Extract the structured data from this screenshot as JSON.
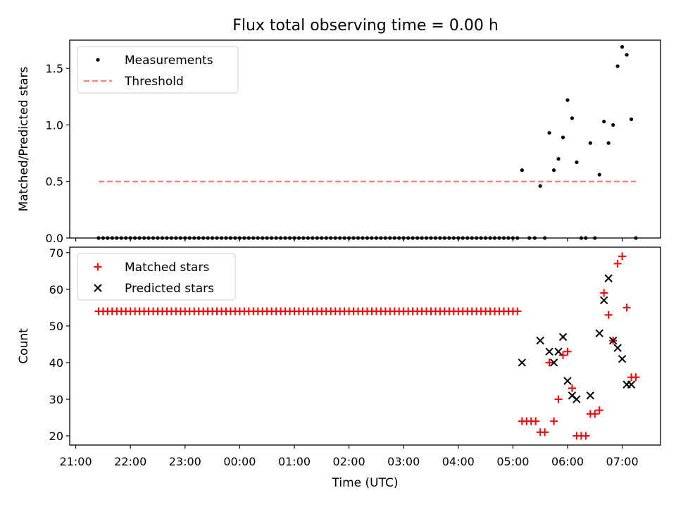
{
  "chart_data": [
    {
      "type": "scatter",
      "title": "Flux total observing time = 0.00 h",
      "xlabel": "",
      "ylabel": "Matched/Predicted stars",
      "ylim": [
        0,
        1.75
      ],
      "y_ticks": [
        "0.0",
        "0.5",
        "1.0",
        "1.5"
      ],
      "legend": {
        "position": "top-left"
      },
      "series": [
        {
          "name": "Measurements",
          "marker": "dot",
          "color": "#000000",
          "points": [
            [
              "21:25",
              0
            ],
            [
              "21:30",
              0
            ],
            [
              "21:35",
              0
            ],
            [
              "21:40",
              0
            ],
            [
              "21:45",
              0
            ],
            [
              "21:50",
              0
            ],
            [
              "21:55",
              0
            ],
            [
              "22:00",
              0
            ],
            [
              "22:05",
              0
            ],
            [
              "22:10",
              0
            ],
            [
              "22:15",
              0
            ],
            [
              "22:20",
              0
            ],
            [
              "22:25",
              0
            ],
            [
              "22:30",
              0
            ],
            [
              "22:35",
              0
            ],
            [
              "22:40",
              0
            ],
            [
              "22:45",
              0
            ],
            [
              "22:50",
              0
            ],
            [
              "22:55",
              0
            ],
            [
              "23:00",
              0
            ],
            [
              "23:05",
              0
            ],
            [
              "23:10",
              0
            ],
            [
              "23:15",
              0
            ],
            [
              "23:20",
              0
            ],
            [
              "23:25",
              0
            ],
            [
              "23:30",
              0
            ],
            [
              "23:35",
              0
            ],
            [
              "23:40",
              0
            ],
            [
              "23:45",
              0
            ],
            [
              "23:50",
              0
            ],
            [
              "23:55",
              0
            ],
            [
              "00:00",
              0
            ],
            [
              "00:05",
              0
            ],
            [
              "00:10",
              0
            ],
            [
              "00:15",
              0
            ],
            [
              "00:20",
              0
            ],
            [
              "00:25",
              0
            ],
            [
              "00:30",
              0
            ],
            [
              "00:35",
              0
            ],
            [
              "00:40",
              0
            ],
            [
              "00:45",
              0
            ],
            [
              "00:50",
              0
            ],
            [
              "00:55",
              0
            ],
            [
              "01:00",
              0
            ],
            [
              "01:05",
              0
            ],
            [
              "01:10",
              0
            ],
            [
              "01:15",
              0
            ],
            [
              "01:20",
              0
            ],
            [
              "01:25",
              0
            ],
            [
              "01:30",
              0
            ],
            [
              "01:35",
              0
            ],
            [
              "01:40",
              0
            ],
            [
              "01:45",
              0
            ],
            [
              "01:50",
              0
            ],
            [
              "01:55",
              0
            ],
            [
              "02:00",
              0
            ],
            [
              "02:05",
              0
            ],
            [
              "02:10",
              0
            ],
            [
              "02:15",
              0
            ],
            [
              "02:20",
              0
            ],
            [
              "02:25",
              0
            ],
            [
              "02:30",
              0
            ],
            [
              "02:35",
              0
            ],
            [
              "02:40",
              0
            ],
            [
              "02:45",
              0
            ],
            [
              "02:50",
              0
            ],
            [
              "02:55",
              0
            ],
            [
              "03:00",
              0
            ],
            [
              "03:05",
              0
            ],
            [
              "03:10",
              0
            ],
            [
              "03:15",
              0
            ],
            [
              "03:20",
              0
            ],
            [
              "03:25",
              0
            ],
            [
              "03:30",
              0
            ],
            [
              "03:35",
              0
            ],
            [
              "03:40",
              0
            ],
            [
              "03:45",
              0
            ],
            [
              "03:50",
              0
            ],
            [
              "03:55",
              0
            ],
            [
              "04:00",
              0
            ],
            [
              "04:05",
              0
            ],
            [
              "04:10",
              0
            ],
            [
              "04:15",
              0
            ],
            [
              "04:20",
              0
            ],
            [
              "04:25",
              0
            ],
            [
              "04:30",
              0
            ],
            [
              "04:35",
              0
            ],
            [
              "04:40",
              0
            ],
            [
              "04:45",
              0
            ],
            [
              "04:50",
              0
            ],
            [
              "04:55",
              0
            ],
            [
              "05:00",
              0
            ],
            [
              "05:05",
              0
            ],
            [
              "05:10",
              0.6
            ],
            [
              "05:18",
              0
            ],
            [
              "05:24",
              0
            ],
            [
              "05:30",
              0.46
            ],
            [
              "05:35",
              0
            ],
            [
              "05:40",
              0.93
            ],
            [
              "05:45",
              0.6
            ],
            [
              "05:50",
              0.7
            ],
            [
              "05:55",
              0.89
            ],
            [
              "06:00",
              1.22
            ],
            [
              "06:05",
              1.06
            ],
            [
              "06:10",
              0.67
            ],
            [
              "06:15",
              0
            ],
            [
              "06:20",
              0
            ],
            [
              "06:25",
              0.84
            ],
            [
              "06:30",
              0
            ],
            [
              "06:35",
              0.56
            ],
            [
              "06:40",
              1.03
            ],
            [
              "06:45",
              0.84
            ],
            [
              "06:50",
              1.0
            ],
            [
              "06:55",
              1.52
            ],
            [
              "07:00",
              1.69
            ],
            [
              "07:05",
              1.62
            ],
            [
              "07:10",
              1.05
            ],
            [
              "07:15",
              0
            ]
          ]
        },
        {
          "name": "Threshold",
          "type": "line",
          "style": "dashed",
          "color": "#ff7f7f",
          "points": [
            [
              "21:25",
              0.5
            ],
            [
              "07:15",
              0.5
            ]
          ]
        }
      ]
    },
    {
      "type": "scatter",
      "title": "",
      "xlabel": "Time (UTC)",
      "ylabel": "Count",
      "ylim": [
        17.5,
        71.5
      ],
      "y_ticks": [
        "20",
        "30",
        "40",
        "50",
        "60",
        "70"
      ],
      "x_ticks": [
        "21:00",
        "22:00",
        "23:00",
        "00:00",
        "01:00",
        "02:00",
        "03:00",
        "04:00",
        "05:00",
        "06:00",
        "07:00"
      ],
      "legend": {
        "position": "top-left"
      },
      "series": [
        {
          "name": "Matched stars",
          "marker": "plus",
          "color": "#ff0000",
          "points": [
            [
              "21:25",
              54
            ],
            [
              "21:30",
              54
            ],
            [
              "21:35",
              54
            ],
            [
              "21:40",
              54
            ],
            [
              "21:45",
              54
            ],
            [
              "21:50",
              54
            ],
            [
              "21:55",
              54
            ],
            [
              "22:00",
              54
            ],
            [
              "22:05",
              54
            ],
            [
              "22:10",
              54
            ],
            [
              "22:15",
              54
            ],
            [
              "22:20",
              54
            ],
            [
              "22:25",
              54
            ],
            [
              "22:30",
              54
            ],
            [
              "22:35",
              54
            ],
            [
              "22:40",
              54
            ],
            [
              "22:45",
              54
            ],
            [
              "22:50",
              54
            ],
            [
              "22:55",
              54
            ],
            [
              "23:00",
              54
            ],
            [
              "23:05",
              54
            ],
            [
              "23:10",
              54
            ],
            [
              "23:15",
              54
            ],
            [
              "23:20",
              54
            ],
            [
              "23:25",
              54
            ],
            [
              "23:30",
              54
            ],
            [
              "23:35",
              54
            ],
            [
              "23:40",
              54
            ],
            [
              "23:45",
              54
            ],
            [
              "23:50",
              54
            ],
            [
              "23:55",
              54
            ],
            [
              "00:00",
              54
            ],
            [
              "00:05",
              54
            ],
            [
              "00:10",
              54
            ],
            [
              "00:15",
              54
            ],
            [
              "00:20",
              54
            ],
            [
              "00:25",
              54
            ],
            [
              "00:30",
              54
            ],
            [
              "00:35",
              54
            ],
            [
              "00:40",
              54
            ],
            [
              "00:45",
              54
            ],
            [
              "00:50",
              54
            ],
            [
              "00:55",
              54
            ],
            [
              "01:00",
              54
            ],
            [
              "01:05",
              54
            ],
            [
              "01:10",
              54
            ],
            [
              "01:15",
              54
            ],
            [
              "01:20",
              54
            ],
            [
              "01:25",
              54
            ],
            [
              "01:30",
              54
            ],
            [
              "01:35",
              54
            ],
            [
              "01:40",
              54
            ],
            [
              "01:45",
              54
            ],
            [
              "01:50",
              54
            ],
            [
              "01:55",
              54
            ],
            [
              "02:00",
              54
            ],
            [
              "02:05",
              54
            ],
            [
              "02:10",
              54
            ],
            [
              "02:15",
              54
            ],
            [
              "02:20",
              54
            ],
            [
              "02:25",
              54
            ],
            [
              "02:30",
              54
            ],
            [
              "02:35",
              54
            ],
            [
              "02:40",
              54
            ],
            [
              "02:45",
              54
            ],
            [
              "02:50",
              54
            ],
            [
              "02:55",
              54
            ],
            [
              "03:00",
              54
            ],
            [
              "03:05",
              54
            ],
            [
              "03:10",
              54
            ],
            [
              "03:15",
              54
            ],
            [
              "03:20",
              54
            ],
            [
              "03:25",
              54
            ],
            [
              "03:30",
              54
            ],
            [
              "03:35",
              54
            ],
            [
              "03:40",
              54
            ],
            [
              "03:45",
              54
            ],
            [
              "03:50",
              54
            ],
            [
              "03:55",
              54
            ],
            [
              "04:00",
              54
            ],
            [
              "04:05",
              54
            ],
            [
              "04:10",
              54
            ],
            [
              "04:15",
              54
            ],
            [
              "04:20",
              54
            ],
            [
              "04:25",
              54
            ],
            [
              "04:30",
              54
            ],
            [
              "04:35",
              54
            ],
            [
              "04:40",
              54
            ],
            [
              "04:45",
              54
            ],
            [
              "04:50",
              54
            ],
            [
              "04:55",
              54
            ],
            [
              "05:00",
              54
            ],
            [
              "05:05",
              54
            ],
            [
              "05:10",
              24
            ],
            [
              "05:15",
              24
            ],
            [
              "05:20",
              24
            ],
            [
              "05:25",
              24
            ],
            [
              "05:30",
              21
            ],
            [
              "05:35",
              21
            ],
            [
              "05:40",
              40
            ],
            [
              "05:45",
              24
            ],
            [
              "05:50",
              30
            ],
            [
              "05:55",
              42
            ],
            [
              "06:00",
              43
            ],
            [
              "06:05",
              33
            ],
            [
              "06:10",
              20
            ],
            [
              "06:15",
              20
            ],
            [
              "06:20",
              20
            ],
            [
              "06:25",
              26
            ],
            [
              "06:30",
              26
            ],
            [
              "06:35",
              27
            ],
            [
              "06:40",
              59
            ],
            [
              "06:45",
              53
            ],
            [
              "06:50",
              46
            ],
            [
              "06:55",
              67
            ],
            [
              "07:00",
              69
            ],
            [
              "07:05",
              55
            ],
            [
              "07:10",
              36
            ],
            [
              "07:15",
              36
            ]
          ]
        },
        {
          "name": "Predicted stars",
          "marker": "x",
          "color": "#000000",
          "points": [
            [
              "05:10",
              40
            ],
            [
              "05:30",
              46
            ],
            [
              "05:40",
              43
            ],
            [
              "05:45",
              40
            ],
            [
              "05:50",
              43
            ],
            [
              "05:55",
              47
            ],
            [
              "06:00",
              35
            ],
            [
              "06:05",
              31
            ],
            [
              "06:10",
              30
            ],
            [
              "06:25",
              31
            ],
            [
              "06:35",
              48
            ],
            [
              "06:40",
              57
            ],
            [
              "06:45",
              63
            ],
            [
              "06:50",
              46
            ],
            [
              "06:55",
              44
            ],
            [
              "07:00",
              41
            ],
            [
              "07:05",
              34
            ],
            [
              "07:10",
              34
            ]
          ]
        }
      ]
    }
  ]
}
